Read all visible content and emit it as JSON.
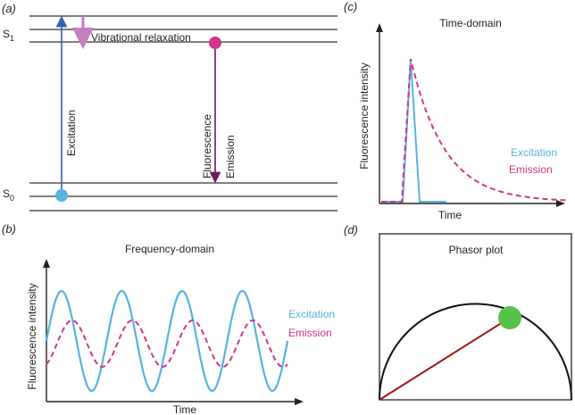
{
  "panel_a": {
    "label": "(a)",
    "s1": "S",
    "s1_sub": "1",
    "s0": "S",
    "s0_sub": "0",
    "vibrational": "Vibrational relaxation",
    "excitation": "Excitation",
    "fluorescence": "Fluorescence",
    "emission": "Emission"
  },
  "panel_b": {
    "label": "(b)",
    "title": "Frequency-domain",
    "ylabel": "Fluorescence intensity",
    "xlabel": "Time",
    "legend_excitation": "Excitation",
    "legend_emission": "Emission"
  },
  "panel_c": {
    "label": "(c)",
    "title": "Time-domain",
    "ylabel": "Fluorescence intensity",
    "xlabel": "Time",
    "legend_excitation": "Excitation",
    "legend_emission": "Emission"
  },
  "panel_d": {
    "label": "(d)",
    "title": "Phasor plot"
  },
  "colors": {
    "excitation": "#56b4e0",
    "emission": "#d6338a",
    "vibrational": "#c57fc0",
    "excitation_arrow": "#3a5fb0",
    "emission_arrow": "#6a1a5a",
    "phasor_line": "#a01818",
    "phasor_dot": "#55c24a",
    "level_line": "#333333"
  },
  "chart_data": [
    {
      "type": "line",
      "panel": "b",
      "title": "Frequency-domain",
      "xlabel": "Time",
      "ylabel": "Fluorescence intensity",
      "series": [
        {
          "name": "Excitation",
          "style": "solid",
          "cycles": 4,
          "amplitude": "large"
        },
        {
          "name": "Emission",
          "style": "dashed",
          "cycles": 4,
          "amplitude": "small",
          "phase_shift": "lagging"
        }
      ],
      "grid": false
    },
    {
      "type": "line",
      "panel": "c",
      "title": "Time-domain",
      "xlabel": "Time",
      "ylabel": "Fluorescence intensity",
      "series": [
        {
          "name": "Excitation",
          "style": "solid",
          "shape": "narrow pulse"
        },
        {
          "name": "Emission",
          "style": "dashed",
          "shape": "exponential decay"
        }
      ],
      "grid": false
    },
    {
      "type": "scatter",
      "panel": "d",
      "title": "Phasor plot",
      "shape": "universal semicircle",
      "grid": false
    }
  ]
}
